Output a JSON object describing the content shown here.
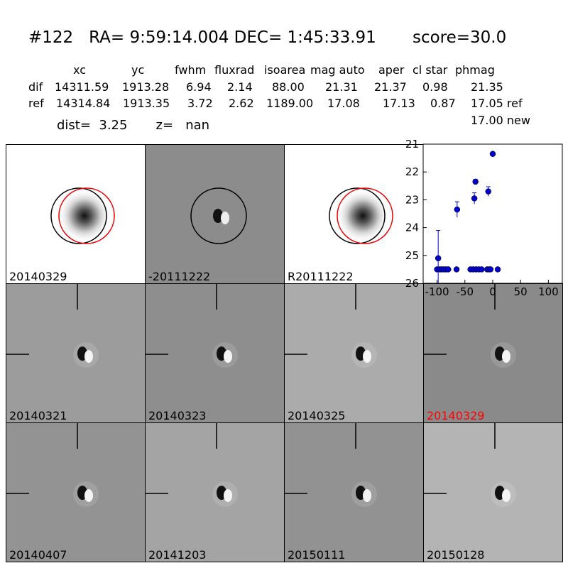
{
  "header": {
    "title": "#122   RA= 9:59:14.004 DEC= 1:45:33.91       score=30.0",
    "columns": [
      "xc",
      "yc",
      "fwhm",
      "fluxrad",
      "isoarea",
      "mag auto",
      "aper",
      "cl star",
      "phmag"
    ],
    "rows": [
      {
        "label": "dif",
        "values": [
          "14311.59",
          "1913.28",
          "6.94",
          "2.14",
          "88.00",
          "21.31",
          "21.37",
          "0.98",
          "21.35"
        ]
      },
      {
        "label": "ref",
        "values": [
          "14314.84",
          "1913.35",
          "3.72",
          "2.62",
          "1189.00",
          "17.08",
          "17.13",
          "0.87",
          "17.05 ref"
        ]
      }
    ],
    "new_mag": "17.00 new",
    "dist": "dist=  3.25       z=   nan"
  },
  "panels": [
    {
      "label": "20140329",
      "bg": "#ffffff",
      "color": "#000000"
    },
    {
      "label": "-20111222",
      "bg": "#8c8c8c",
      "color": "#000000"
    },
    {
      "label": "R20111222",
      "bg": "#ffffff",
      "color": "#000000"
    },
    {
      "label": "20140321",
      "bg": "#9c9c9c",
      "color": "#000000"
    },
    {
      "label": "20140323",
      "bg": "#8e8e8e",
      "color": "#000000"
    },
    {
      "label": "20140325",
      "bg": "#ababab",
      "color": "#000000"
    },
    {
      "label": "20140329",
      "bg": "#8a8a8a",
      "color": "#ff0000"
    },
    {
      "label": "20140407",
      "bg": "#939393",
      "color": "#000000"
    },
    {
      "label": "20141203",
      "bg": "#a4a4a4",
      "color": "#000000"
    },
    {
      "label": "20150111",
      "bg": "#929292",
      "color": "#000000"
    },
    {
      "label": "20150128",
      "bg": "#b4b4b4",
      "color": "#000000"
    }
  ],
  "chart_data": {
    "type": "scatter",
    "xlim": [
      -125,
      125
    ],
    "ylim": [
      26,
      21
    ],
    "xticks": [
      -100,
      -50,
      0,
      50,
      100
    ],
    "yticks": [
      21,
      22,
      23,
      24,
      25,
      26
    ],
    "marker_color": "#0000cc",
    "points": [
      {
        "x": -100,
        "y": 25.5,
        "err": 0
      },
      {
        "x": -98,
        "y": 25.1,
        "err": 1.0
      },
      {
        "x": -95,
        "y": 25.5,
        "err": 0
      },
      {
        "x": -92,
        "y": 25.5,
        "err": 0
      },
      {
        "x": -88,
        "y": 25.5,
        "err": 0
      },
      {
        "x": -84,
        "y": 25.5,
        "err": 0
      },
      {
        "x": -80,
        "y": 25.5,
        "err": 0
      },
      {
        "x": -65,
        "y": 25.5,
        "err": 0
      },
      {
        "x": -64,
        "y": 23.35,
        "err": 0.28
      },
      {
        "x": -40,
        "y": 25.5,
        "err": 0
      },
      {
        "x": -35,
        "y": 25.5,
        "err": 0
      },
      {
        "x": -33,
        "y": 22.95,
        "err": 0.2
      },
      {
        "x": -31,
        "y": 22.35,
        "err": 0.08
      },
      {
        "x": -30,
        "y": 25.5,
        "err": 0
      },
      {
        "x": -25,
        "y": 25.5,
        "err": 0
      },
      {
        "x": -20,
        "y": 25.5,
        "err": 0
      },
      {
        "x": -10,
        "y": 25.5,
        "err": 0
      },
      {
        "x": -8,
        "y": 22.7,
        "err": 0.17
      },
      {
        "x": -6,
        "y": 25.5,
        "err": 0
      },
      {
        "x": -4,
        "y": 25.5,
        "err": 0
      },
      {
        "x": 0,
        "y": 21.35,
        "err": 0
      },
      {
        "x": 9,
        "y": 25.5,
        "err": 0
      }
    ]
  }
}
